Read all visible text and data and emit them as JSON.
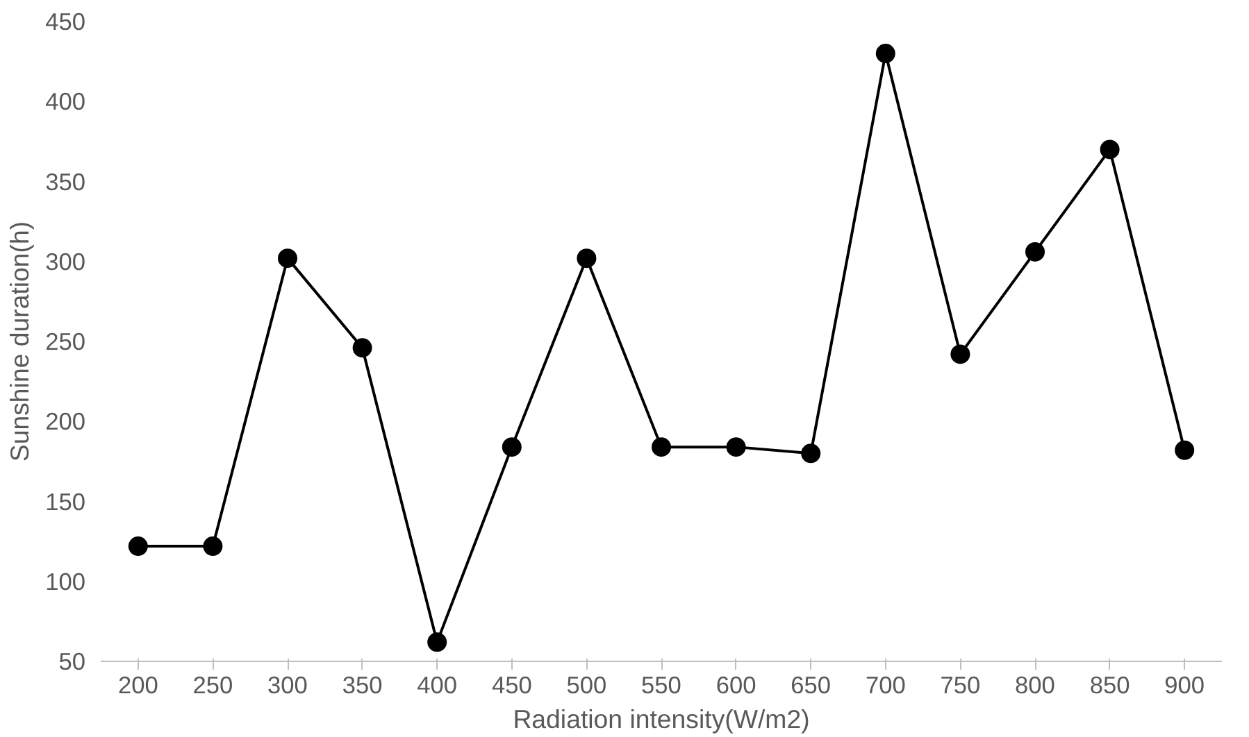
{
  "chart_data": {
    "type": "line",
    "xlabel": "Radiation intensity(W/m2)",
    "ylabel": "Sunshine duration(h)",
    "categories": [
      "200",
      "250",
      "300",
      "350",
      "400",
      "450",
      "500",
      "550",
      "600",
      "650",
      "700",
      "750",
      "800",
      "850",
      "900"
    ],
    "series": [
      {
        "color": "#000000",
        "values": [
          122,
          122,
          302,
          246,
          62,
          184,
          302,
          184,
          184,
          180,
          430,
          242,
          306,
          370,
          182
        ]
      }
    ],
    "ylim": [
      50,
      450
    ],
    "yticks": [
      50,
      100,
      150,
      200,
      250,
      300,
      350,
      400,
      450
    ],
    "grid": false,
    "marker": "circle",
    "line_style": "solid"
  }
}
